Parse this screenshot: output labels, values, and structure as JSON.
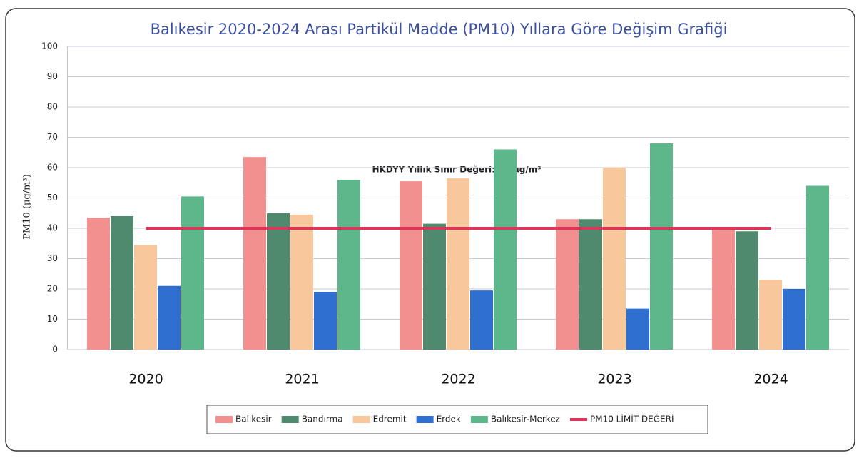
{
  "chart_data": {
    "type": "bar",
    "title": "Balıkesir 2020-2024 Arası Partikül Madde (PM10) Yıllara Göre Değişim Grafiği",
    "y_label": "PM10 (µg/m³)",
    "annotation": "HKDYY Yıllık Sınır Değeri: 40 µg/m³",
    "categories": [
      "2020",
      "2021",
      "2022",
      "2023",
      "2024"
    ],
    "series": [
      {
        "name": "Balıkesir",
        "color": "#f29090",
        "values": [
          43.5,
          63.5,
          55.5,
          43,
          39.5
        ]
      },
      {
        "name": "Bandırma",
        "color": "#4f8a6f",
        "values": [
          44,
          45,
          41.5,
          43,
          39
        ]
      },
      {
        "name": "Edremit",
        "color": "#f8c89c",
        "values": [
          34.5,
          44.5,
          56.5,
          60,
          23
        ]
      },
      {
        "name": "Erdek",
        "color": "#2f6fd0",
        "values": [
          21,
          19,
          19.5,
          13.5,
          20
        ]
      },
      {
        "name": "Balıkesir-Merkez",
        "color": "#5db78b",
        "values": [
          50.5,
          56,
          66,
          68,
          54
        ]
      },
      {
        "name": "PM10 LİMİT DEĞERİ",
        "color": "#e0335a",
        "type": "line",
        "values": [
          40,
          40,
          40,
          40,
          40
        ]
      }
    ],
    "ylim": [
      0,
      100
    ],
    "yticks": [
      0,
      10,
      20,
      30,
      40,
      50,
      60,
      70,
      80,
      90,
      100
    ],
    "grid": true,
    "legend": "bottom"
  }
}
